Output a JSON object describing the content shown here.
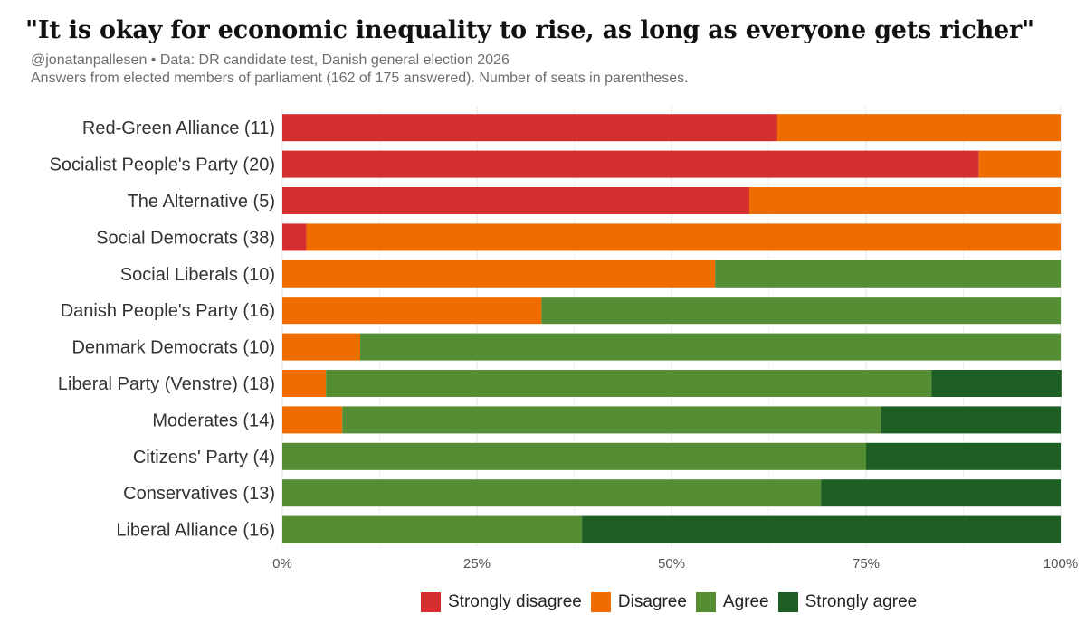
{
  "chart_data": {
    "type": "bar",
    "stacked": true,
    "orientation": "horizontal",
    "title": "\"It is okay for economic inequality to rise, as long as everyone gets richer\"",
    "subtitle": [
      "@jonatanpallesen • Data: DR candidate test, Danish general election 2026",
      "Answers from elected members of parliament (162 of 175 answered). Number of seats in parentheses."
    ],
    "categories": [
      "Red-Green Alliance (11)",
      "Socialist People's Party (20)",
      "The Alternative (5)",
      "Social Democrats (38)",
      "Social Liberals (10)",
      "Danish People's Party (16)",
      "Denmark Democrats (10)",
      "Liberal Party (Venstre) (18)",
      "Moderates (14)",
      "Citizens' Party (4)",
      "Conservatives (13)",
      "Liberal Alliance (16)"
    ],
    "series": [
      {
        "name": "Strongly disagree",
        "color": "#d42f2f",
        "values": [
          63.6,
          89.5,
          60,
          3.1,
          0,
          0,
          0,
          0,
          0,
          0,
          0,
          0
        ]
      },
      {
        "name": "Disagree",
        "color": "#ef6c00",
        "values": [
          36.4,
          10.5,
          40,
          96.9,
          55.6,
          33.3,
          10,
          5.6,
          7.7,
          0,
          0,
          0
        ]
      },
      {
        "name": "Agree",
        "color": "#548d33",
        "values": [
          0,
          0,
          0,
          0,
          44.4,
          66.7,
          90,
          77.8,
          69.2,
          75,
          69.2,
          38.5
        ]
      },
      {
        "name": "Strongly agree",
        "color": "#1d5e22",
        "values": [
          0,
          0,
          0,
          0,
          0,
          0,
          0,
          16.7,
          23.1,
          25,
          30.8,
          61.5
        ]
      }
    ],
    "xlim": [
      0,
      100
    ],
    "xticks": [
      0,
      25,
      50,
      75,
      100
    ],
    "xtick_labels": [
      "0%",
      "25%",
      "50%",
      "75%",
      "100%"
    ],
    "xlabel": "",
    "ylabel": "",
    "grid": true,
    "legend_position": "bottom"
  }
}
